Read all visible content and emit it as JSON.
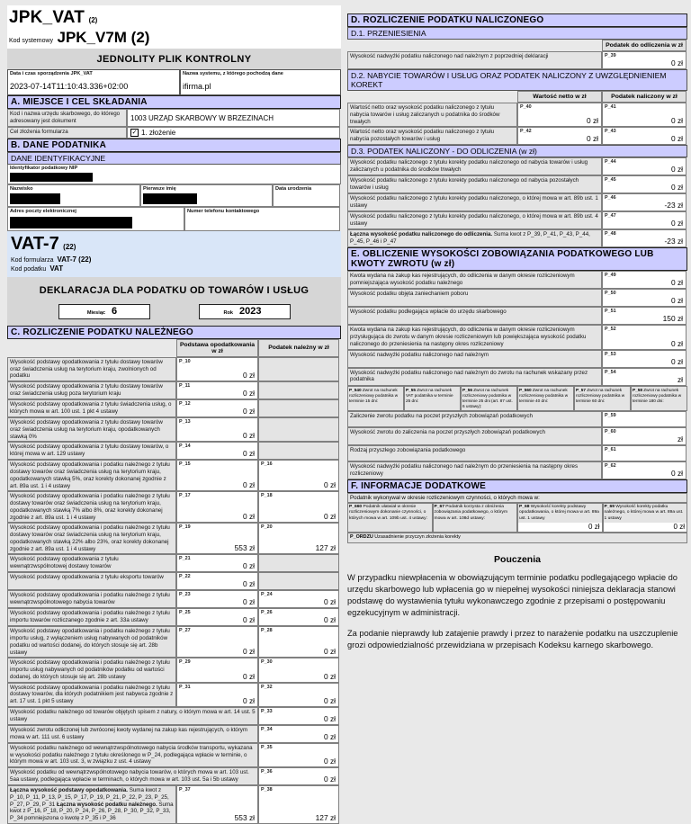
{
  "header": {
    "title": "JPK_VAT",
    "title_sup": "(2)",
    "system_code_label": "Kod systemowy",
    "system_code_value": "JPK_V7M (2)",
    "banner": "JEDNOLITY PLIK KONTROLNY",
    "created_label": "Data i czas sporządzenia JPK_VAT",
    "created_value": "2023-07-14T11:10:43.336+02:00",
    "source_label": "Nazwa systemu, z którego pochodzą dane",
    "source_value": "ifirma.pl"
  },
  "section_a": {
    "title": "A. MIEJSCE I CEL SKŁADANIA",
    "office_label": "Kod i nazwa urzędu skarbowego, do którego adresowany jest dokument",
    "office_value": "1003  URZĄD SKARBOWY W BRZEZINACH",
    "purpose_label": "Cel złożenia formularza",
    "purpose_value": "1. złożenie"
  },
  "section_b": {
    "title": "B. DANE PODATNIKA",
    "subtitle": "DANE IDENTYFIKACYJNE",
    "nip_label": "Identyfikator podatkowy NIP",
    "surname_label": "Nazwisko",
    "firstname_label": "Pierwsze imię",
    "birthdate_label": "Data urodzenia",
    "email_label": "Adres poczty elektronicznej",
    "phone_label": "Numer telefonu kontaktowego"
  },
  "vat7": {
    "title": "VAT-7",
    "title_sup": "(22)",
    "form_code_label": "Kod formularza",
    "form_code_value": "VAT-7 (22)",
    "tax_code_label": "Kod podatku",
    "tax_code_value": "VAT",
    "declaration_banner": "DEKLARACJA DLA PODATKU OD TOWARÓW I USŁUG",
    "month_label": "Miesiąc",
    "month_value": "6",
    "year_label": "Rok",
    "year_value": "2023"
  },
  "section_c": {
    "title": "C. ROZLICZENIE PODATKU NALEŻNEGO",
    "col1": "Podstawa opodatkowania w zł",
    "col2": "Podatek należny w zł",
    "rows": [
      {
        "label": "Wysokość podstawy opodatkowania z tytułu dostawy towarów oraz świadczenia usług na terytorium kraju, zwolnionych od podatku",
        "code1": "P_10",
        "val1": "0 zł"
      },
      {
        "label": "Wysokość podstawy opodatkowania z tytułu dostawy towarów oraz świadczenia usług poza terytorium kraju",
        "code1": "P_11",
        "val1": "0 zł"
      },
      {
        "label": "Wysokość podstawy opodatkowania z tytułu świadczenia usług, o których mowa w art. 100 ust. 1 pkt 4 ustawy",
        "code1": "P_12",
        "val1": "0 zł"
      },
      {
        "label": "Wysokość podstawy opodatkowania z tytułu dostawy towarów oraz świadczenia usług na terytorium kraju, opodatkowanych stawką 0%",
        "code1": "P_13",
        "val1": "0 zł"
      },
      {
        "label": "Wysokość podstawy opodatkowania z tytułu dostawy towarów, o której mowa w art. 129 ustawy",
        "code1": "P_14",
        "val1": "0 zł"
      },
      {
        "label": "Wysokość podstawy opodatkowania i podatku należnego z tytułu dostawy towarów oraz świadczenia usług na terytorium kraju, opodatkowanych stawką 5%, oraz korekty dokonanej zgodnie z art. 89a ust. 1 i 4 ustawy",
        "code1": "P_15",
        "val1": "0 zł",
        "code2": "P_16",
        "val2": "0 zł"
      },
      {
        "label": "Wysokość podstawy opodatkowania i podatku należnego z tytułu dostawy towarów oraz świadczenia usług na terytorium kraju, opodatkowanych stawką 7% albo 8%, oraz korekty dokonanej zgodnie z art. 89a ust. 1 i 4 ustawy",
        "code1": "P_17",
        "val1": "0 zł",
        "code2": "P_18",
        "val2": "0 zł"
      },
      {
        "label": "Wysokość podstawy opodatkowania i podatku należnego z tytułu dostawy towarów oraz świadczenia usług na terytorium kraju, opodatkowanych stawką 22% albo 23%, oraz korekty dokonanej zgodnie z art. 89a ust. 1 i 4 ustawy",
        "code1": "P_19",
        "val1": "553 zł",
        "code2": "P_20",
        "val2": "127 zł"
      },
      {
        "label": "Wysokość podstawy opodatkowania z tytułu wewnątrzwspólnotowej dostawy towarów",
        "code1": "P_21",
        "val1": "0 zł"
      },
      {
        "label": "Wysokość podstawy opodatkowania z tytułu eksportu towarów",
        "code1": "P_22",
        "val1": "0 zł"
      },
      {
        "label": "Wysokość podstawy opodatkowania i podatku należnego z tytułu wewnątrzwspólnotowego nabycia towarów",
        "code1": "P_23",
        "val1": "0 zł",
        "code2": "P_24",
        "val2": "0 zł"
      },
      {
        "label": "Wysokość podstawy opodatkowania i podatku należnego z tytułu importu towarów rozliczanego zgodnie z art. 33a ustawy",
        "code1": "P_25",
        "val1": "0 zł",
        "code2": "P_26",
        "val2": "0 zł"
      },
      {
        "label": "Wysokość podstawy opodatkowania i podatku należnego z tytułu importu usług, z wyłączeniem usług nabywanych od podatników podatku od wartości dodanej, do których stosuje się art. 28b ustawy",
        "code1": "P_27",
        "val1": "0 zł",
        "code2": "P_28",
        "val2": "0 zł"
      },
      {
        "label": "Wysokość podstawy opodatkowania i podatku należnego z tytułu importu usług nabywanych od podatników podatku od wartości dodanej, do których stosuje się art. 28b ustawy",
        "code1": "P_29",
        "val1": "0 zł",
        "code2": "P_30",
        "val2": "0 zł"
      },
      {
        "label": "Wysokość podstawy opodatkowania i podatku należnego z tytułu dostawy towarów, dla których podatnikiem jest nabywca zgodnie z art. 17 ust. 1 pkt 5 ustawy",
        "code1": "P_31",
        "val1": "0 zł",
        "code2": "P_32",
        "val2": "0 zł"
      },
      {
        "wide": true,
        "label": "Wysokość podatku należnego od towarów objętych spisem z natury, o którym mowa w art. 14 ust. 5 ustawy",
        "code2": "P_33",
        "val2": "0 zł"
      },
      {
        "wide": true,
        "label": "Wysokość zwrotu odliczonej lub zwróconej kwoty wydanej na zakup kas rejestrujących, o którym mowa w art. 111 ust. 6 ustawy",
        "code2": "P_34",
        "val2": "0 zł"
      },
      {
        "wide": true,
        "label": "Wysokość podatku należnego od wewnątrzwspólnotowego nabycia środków transportu, wykazana w wysokości podatku należnego z tytułu określonego w P_24, podlegająca wpłacie w terminie, o którym mowa w art. 103 ust. 3, w związku z ust. 4 ustawy",
        "code2": "P_35",
        "val2": "0 zł"
      },
      {
        "wide": true,
        "label": "Wysokość podatku od wewnątrzwspólnotowego nabycia towarów, o których mowa w art. 103 ust. 5aa ustawy, podlegająca wpłacie w terminach, o których mowa w art. 103 ust. 5a i 5b ustawy",
        "code2": "P_36",
        "val2": "0 zł"
      },
      {
        "segments": [
          {
            "text": "Łączna wysokość podstawy opodatkowania.",
            "bold": true
          },
          {
            "text": " Suma kwot z P_10, P_11, P_13, P_15, P_17, P_19, P_21, P_22, P_23, P_25, P_27, P_29, P_31 ",
            "bold": false
          },
          {
            "text": "Łączna wysokość podatku należnego.",
            "bold": true
          },
          {
            "text": " Suma kwot z P_16, P_18, P_20, P_24, P_26, P_28, P_30, P_32, P_33, P_34 pomniejszona o kwotę z P_35 i P_36",
            "bold": false
          }
        ],
        "code1": "P_37",
        "val1": "553 zł",
        "code2": "P_38",
        "val2": "127 zł"
      }
    ]
  },
  "section_d": {
    "title": "D. ROZLICZENIE PODATKU NALICZONEGO",
    "d1": {
      "title": "D.1. PRZENIESIENIA",
      "col": "Podatek do odliczenia w zł",
      "rows": [
        {
          "label": "Wysokość nadwyżki podatku naliczonego nad należnym z poprzedniej deklaracji",
          "code": "P_39",
          "val": "0 zł"
        }
      ]
    },
    "d2": {
      "title": "D.2. NABYCIE TOWARÓW I USŁUG ORAZ PODATEK NALICZONY Z UWZGLĘDNIENIEM KOREKT",
      "col1": "Wartość netto w zł",
      "col2": "Podatek naliczony w zł",
      "rows": [
        {
          "label": "Wartość netto oraz wysokość podatku naliczonego z tytułu nabycia towarów i usług zaliczanych u podatnika do środków trwałych",
          "code1": "P_40",
          "val1": "0 zł",
          "code2": "P_41",
          "val2": "0 zł"
        },
        {
          "label": "Wartość netto oraz wysokość podatku naliczonego z tytułu nabycia pozostałych towarów i usług",
          "code1": "P_42",
          "val1": "0 zł",
          "code2": "P_43",
          "val2": "0 zł"
        }
      ]
    },
    "d3": {
      "title": "D.3. PODATEK NALICZONY - DO ODLICZENIA (w zł)",
      "rows": [
        {
          "label": "Wysokość podatku naliczonego z tytułu korekty podatku naliczonego od nabycia towarów i usług zaliczanych u podatnika do środków trwałych",
          "code": "P_44",
          "val": "0 zł"
        },
        {
          "label": "Wysokość podatku naliczonego z tytułu korekty podatku naliczonego od nabycia pozostałych towarów i usług",
          "code": "P_45",
          "val": "0 zł"
        },
        {
          "label": "Wysokość podatku naliczonego z tytułu korekty podatku naliczonego, o której mowa w art. 89b ust. 1 ustawy",
          "code": "P_46",
          "val": "-23 zł"
        },
        {
          "label": "Wysokość podatku naliczonego z tytułu korekty podatku naliczonego, o której mowa w art. 89b ust. 4 ustawy",
          "code": "P_47",
          "val": "0 zł"
        },
        {
          "segments": [
            {
              "text": "Łączna wysokość podatku naliczonego do odliczenia.",
              "bold": true
            },
            {
              "text": " Suma kwot z P_39, P_41, P_43, P_44, P_45, P_46 i P_47",
              "bold": false
            }
          ],
          "code": "P_48",
          "val": "-23 zł"
        }
      ]
    }
  },
  "section_e": {
    "title": "E. OBLICZENIE WYSOKOŚCI ZOBOWIĄZANIA PODATKOWEGO LUB KWOTY ZWROTU  (w zł)",
    "rows": [
      {
        "label": "Kwota wydana na zakup kas rejestrujących, do odliczenia w danym okresie rozliczeniowym pomniejszająca wysokość podatku należnego",
        "code": "P_49",
        "val": "0 zł"
      },
      {
        "label": "Wysokość podatku objęta zaniechaniem poboru",
        "code": "P_50",
        "val": "0 zł"
      },
      {
        "label": "Wysokość podatku podlegająca wpłacie do urzędu skarbowego",
        "code": "P_51",
        "val": "150 zł"
      },
      {
        "label": "Kwota wydana na zakup kas rejestrujących, do odliczenia w danym okresie rozliczeniowym przysługująca do zwrotu w danym okresie rozliczeniowym lub powiększająca wysokość podatku naliczonego do przeniesienia na następny okres rozliczeniowy",
        "code": "P_52",
        "val": "0 zł"
      },
      {
        "label": "Wysokość nadwyżki podatku naliczonego nad należnym",
        "code": "P_53",
        "val": "0 zł"
      },
      {
        "label": "Wysokość nadwyżki podatku naliczonego nad należnym do zwrotu na rachunek wskazany przez podatnika",
        "code": "P_54",
        "val": "zł"
      }
    ],
    "return_options": [
      {
        "code": "P_540",
        "text": "Zwrot na rachunek rozliczeniowy podatnika w terminie 15 dni:"
      },
      {
        "code": "P_55",
        "text": "Zwrot na rachunek VAT podatnika w terminie 25 dni:"
      },
      {
        "code": "P_56",
        "text": "Zwrot na rachunek rozliczeniowy podatnika w terminie 25 dni (art. 87 ust. 6 ustawy):"
      },
      {
        "code": "P_560",
        "text": "Zwrot na rachunek rozliczeniowy podatnika w terminie 40 dni:"
      },
      {
        "code": "P_57",
        "text": "Zwrot na rachunek rozliczeniowy podatnika w terminie 60 dni:"
      },
      {
        "code": "P_58",
        "text": "Zwrot na rachunek rozliczeniowy podatnika w terminie 180 dni:"
      }
    ],
    "rows2": [
      {
        "label": "Zaliczenie zwrotu podatku na poczet przyszłych zobowiązań podatkowych",
        "code": "P_59",
        "val": ""
      },
      {
        "label": "Wysokość zwrotu do zaliczenia na poczet przyszłych zobowiązań podatkowych",
        "code": "P_60",
        "val": "zł"
      },
      {
        "label": "Rodzaj przyszłego zobowiązania podatkowego",
        "code": "P_61",
        "val": ""
      },
      {
        "label": "Wysokość nadwyżki podatku naliczonego nad należnym do przeniesienia na następny okres rozliczeniowy",
        "code": "P_62",
        "val": "0 zł"
      }
    ]
  },
  "section_f": {
    "title": "F. INFORMACJE DODATKOWE",
    "intro": "Podatnik wykonywał w okresie rozliczeniowym czynności, o których mowa w:",
    "cells": [
      {
        "code": "P_660",
        "text": "Podatnik ułatwiał w okresie rozliczeniowym dokonanie czynności, o których mowa w art. 109b ust. 4 ustawy:",
        "val": null
      },
      {
        "code": "P_67",
        "text": "Podatnik korzysta z obniżenia zobowiązania podatkowego, o którym mowa w art. 108d ustawy:",
        "val": null
      },
      {
        "code": "P_68",
        "text": "Wysokość korekty podstawy opodatkowania, o której mowa w art. 89a ust. 1 ustawy",
        "val": "0 zł"
      },
      {
        "code": "P_69",
        "text": "Wysokość korekty podatku należnego, o której mowa w art. 89a ust. 1 ustawy",
        "val": "0 zł"
      }
    ],
    "ordzu_code": "P_ORDZU",
    "ordzu_text": "Uzasadnienie przyczyn złożenia korekty"
  },
  "pouczenia": {
    "title": "Pouczenia",
    "p1": "W przypadku niewpłacenia w obowiązującym terminie podatku podlegającego wpłacie do urzędu skarbowego lub wpłacenia go w niepełnej wysokości niniejsza deklaracja stanowi podstawę do wystawienia tytułu wykonawczego zgodnie z przepisami o postępowaniu egzekucyjnym w administracji.",
    "p2": "Za podanie nieprawdy lub zatajenie prawdy i przez to narażenie podatku na uszczuplenie grozi odpowiedzialność przewidziana w przepisach Kodeksu karnego skarbowego."
  }
}
